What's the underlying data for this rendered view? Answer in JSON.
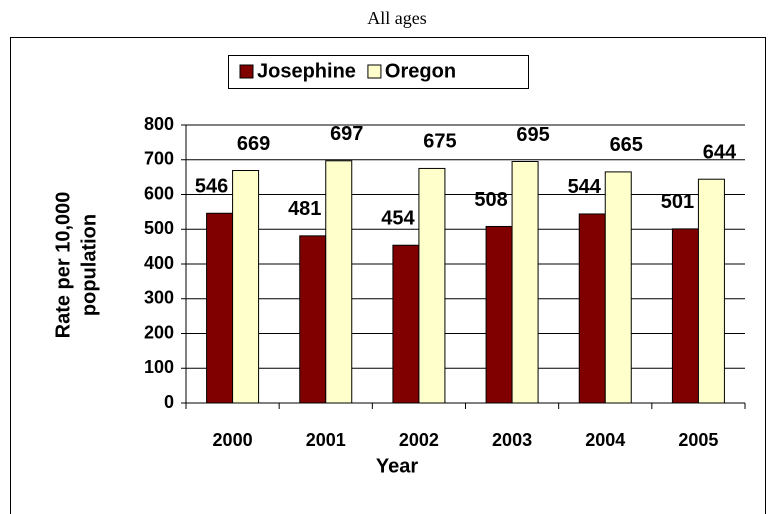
{
  "chart_data": {
    "type": "bar",
    "title": "All ages",
    "categories": [
      "2000",
      "2001",
      "2002",
      "2003",
      "2004",
      "2005"
    ],
    "series": [
      {
        "name": "Josephine",
        "color": "#800000",
        "values": [
          546,
          481,
          454,
          508,
          544,
          501
        ]
      },
      {
        "name": "Oregon",
        "color": "#ffffcc",
        "values": [
          669,
          697,
          675,
          695,
          665,
          644
        ]
      }
    ],
    "xlabel": "Year",
    "ylabel": [
      "Rate per 10,000",
      "population"
    ],
    "ylim": [
      0,
      800
    ],
    "yticks": [
      0,
      100,
      200,
      300,
      400,
      500,
      600,
      700,
      800
    ],
    "grid": true,
    "legend": "top"
  }
}
